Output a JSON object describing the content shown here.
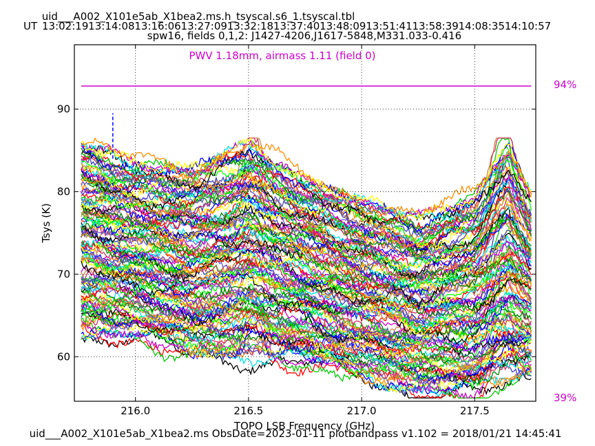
{
  "header": {
    "table_name": "uid___A002_X101e5ab_X1bea2.ms.h_tsyscal.s6_1.tsyscal.tbl",
    "ut_label": "UT",
    "ut_times": [
      "13:02:19",
      "13:14:08",
      "13:16:06",
      "13:27:09",
      "13:32:18",
      "13:37:40",
      "13:48:09",
      "13:51:41",
      "13:58:39",
      "14:08:35",
      "14:10:57"
    ],
    "spw_line": "spw16,  fields 0,1,2: J1427-4206,J1617-5848,M331.033-0.416"
  },
  "footer": {
    "text": "uid___A002_X101e5ab_X1bea2.ms  ObsDate=2023-01-11   plotbandpass v1.102 = 2018/01/21 14:45:41"
  },
  "colors": {
    "pwv": "#cc00cc",
    "grid": "#000000",
    "palette": [
      "#000000",
      "#ff0000",
      "#00cc00",
      "#0000ff",
      "#00e5e5",
      "#cc00cc",
      "#ffff00",
      "#ff8c00",
      "#4040c0",
      "#00ff00",
      "#cc8844",
      "#cc3366",
      "#008000",
      "#6a5acd"
    ]
  },
  "chart_data": {
    "type": "line",
    "title": "",
    "xlabel": "TOPO LSB Frequency (GHz)",
    "ylabel": "Tsys (K)",
    "xlim": [
      215.73,
      217.77
    ],
    "ylim": [
      54.6,
      97.8
    ],
    "xticks": [
      216.0,
      216.5,
      217.0,
      217.5
    ],
    "xtick_labels": [
      "216.0",
      "216.5",
      "217.0",
      "217.5"
    ],
    "yticks": [
      60,
      70,
      80,
      90
    ],
    "ytick_labels": [
      "60",
      "70",
      "80",
      "90"
    ],
    "grid": true,
    "pwv_annotation": "PWV 1.18mm, airmass 1.11 (field 0)",
    "atmosphere": {
      "transmission_percent": [
        {
          "x": 215.76,
          "y": 92.8
        },
        {
          "x": 217.75,
          "y": 92.8
        }
      ],
      "right_labels": [
        "94%",
        "39%"
      ]
    },
    "flag_marker": {
      "x": 215.9,
      "y_from": 84.0,
      "y_to": 89.5
    },
    "series_count": 120,
    "series_description": "Tsys spectra for many antennas/polarizations; levels shown as envelope",
    "envelope": {
      "x": [
        215.76,
        216.0,
        216.25,
        216.5,
        216.75,
        217.0,
        217.25,
        217.5,
        217.65,
        217.75
      ],
      "upper": [
        86.0,
        84.0,
        83.0,
        86.0,
        82.0,
        79.0,
        77.0,
        80.0,
        86.0,
        80.0
      ],
      "lower": [
        62.5,
        62.0,
        60.0,
        59.5,
        59.0,
        57.5,
        55.5,
        55.0,
        56.0,
        57.5
      ]
    }
  }
}
